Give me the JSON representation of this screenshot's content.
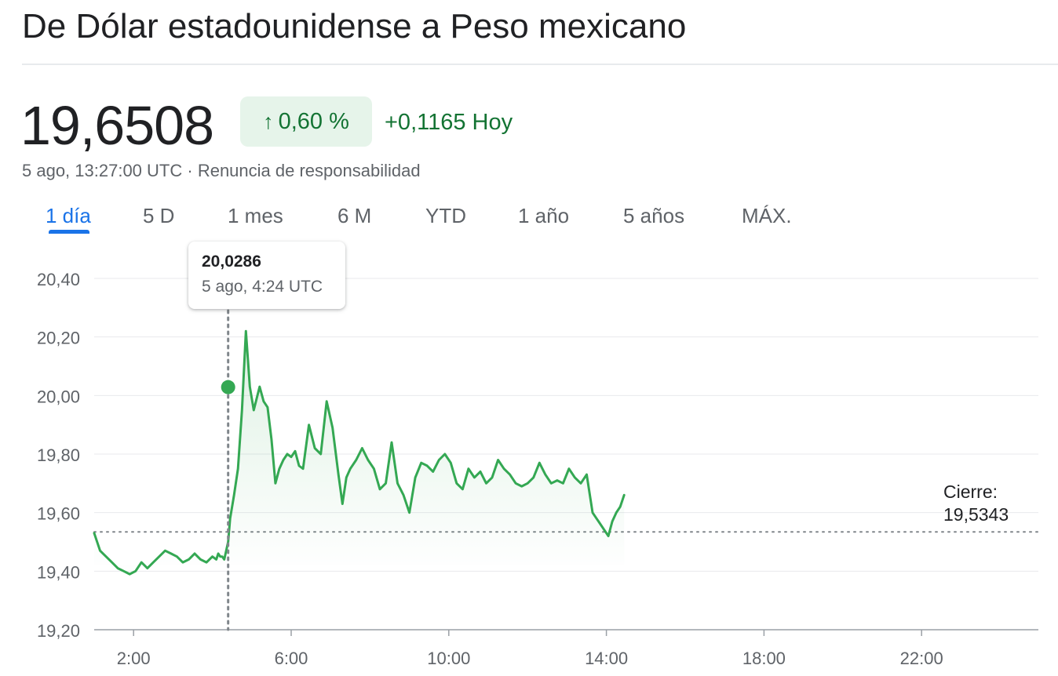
{
  "header": {
    "title": "De Dólar estadounidense a Peso mexicano"
  },
  "quote": {
    "price": "19,6508",
    "change_pct": "0,60 %",
    "change_abs": "+0,1165 Hoy",
    "timestamp": "5 ago, 13:27:00 UTC",
    "separator": "·",
    "disclaimer": "Renuncia de responsabilidad",
    "direction": "up-arrow-icon"
  },
  "tabs": [
    {
      "label": "1 día",
      "active": true
    },
    {
      "label": "5 D",
      "active": false
    },
    {
      "label": "1 mes",
      "active": false
    },
    {
      "label": "6 M",
      "active": false
    },
    {
      "label": "YTD",
      "active": false
    },
    {
      "label": "1 año",
      "active": false
    },
    {
      "label": "5 años",
      "active": false
    },
    {
      "label": "MÁX.",
      "active": false
    }
  ],
  "tooltip": {
    "value": "20,0286",
    "time": "5 ago, 4:24 UTC"
  },
  "previous_close": {
    "label": "Cierre:",
    "value": "19,5343"
  },
  "colors": {
    "line": "#34a853",
    "positive": "#137333",
    "positive_bg": "#e6f4ea",
    "accent": "#1a73e8"
  },
  "chart_data": {
    "type": "line",
    "title": "",
    "xlabel": "",
    "ylabel": "",
    "xlim": [
      1.0,
      24.0
    ],
    "ylim": [
      19.2,
      20.4
    ],
    "yticks": [
      "19,20",
      "19,40",
      "19,60",
      "19,80",
      "20,00",
      "20,20",
      "20,40"
    ],
    "ytick_values": [
      19.2,
      19.4,
      19.6,
      19.8,
      20.0,
      20.2,
      20.4
    ],
    "xticks": [
      "2:00",
      "6:00",
      "10:00",
      "14:00",
      "18:00",
      "22:00"
    ],
    "xtick_values": [
      2,
      6,
      10,
      14,
      18,
      22
    ],
    "previous_close": 19.5343,
    "hover_point": {
      "x": 4.4,
      "y": 20.0286
    },
    "grid": true,
    "series": [
      {
        "x": [
          0.0,
          0.15,
          0.3,
          0.45,
          0.6,
          0.75,
          0.9,
          1.05,
          1.2,
          1.35,
          1.5,
          1.65,
          1.8,
          1.95,
          2.1,
          2.25,
          2.4,
          2.55,
          2.7,
          2.85,
          3.0,
          3.1,
          3.15,
          3.2,
          3.25,
          3.3,
          3.35,
          3.4,
          3.45,
          3.55,
          3.65,
          3.75,
          3.85,
          3.95,
          4.05,
          4.2,
          4.3,
          4.4,
          4.5,
          4.6,
          4.7,
          4.8,
          4.9,
          5.0,
          5.1,
          5.2,
          5.3,
          5.45,
          5.6,
          5.75,
          5.9,
          6.05,
          6.2,
          6.3,
          6.4,
          6.5,
          6.65,
          6.8,
          6.95,
          7.1,
          7.25,
          7.4,
          7.55,
          7.7,
          7.85,
          8.0,
          8.15,
          8.3,
          8.45,
          8.6,
          8.75,
          8.9,
          9.05,
          9.2,
          9.35,
          9.5,
          9.65,
          9.8,
          9.95,
          10.1,
          10.25,
          10.4,
          10.55,
          10.7,
          10.85,
          11.0,
          11.15,
          11.3,
          11.45,
          11.6,
          11.75,
          11.9,
          12.05,
          12.2,
          12.35,
          12.5,
          12.65,
          12.8,
          12.95,
          13.05,
          13.15,
          13.25,
          13.35,
          13.45
        ],
        "values": [
          19.53,
          19.47,
          19.45,
          19.43,
          19.41,
          19.4,
          19.39,
          19.4,
          19.43,
          19.41,
          19.43,
          19.45,
          19.47,
          19.46,
          19.45,
          19.43,
          19.44,
          19.46,
          19.44,
          19.43,
          19.45,
          19.44,
          19.46,
          19.45,
          19.45,
          19.44,
          19.47,
          19.5,
          19.58,
          19.66,
          19.75,
          19.95,
          20.22,
          20.03,
          19.95,
          20.03,
          19.98,
          19.96,
          19.85,
          19.7,
          19.75,
          19.78,
          19.8,
          19.79,
          19.81,
          19.76,
          19.75,
          19.9,
          19.82,
          19.8,
          19.98,
          19.89,
          19.73,
          19.63,
          19.72,
          19.75,
          19.78,
          19.82,
          19.78,
          19.75,
          19.68,
          19.7,
          19.84,
          19.7,
          19.66,
          19.6,
          19.72,
          19.77,
          19.76,
          19.74,
          19.78,
          19.8,
          19.77,
          19.7,
          19.68,
          19.75,
          19.72,
          19.74,
          19.7,
          19.72,
          19.78,
          19.75,
          19.73,
          19.7,
          19.69,
          19.7,
          19.72,
          19.77,
          19.73,
          19.7,
          19.71,
          19.7,
          19.75,
          19.72,
          19.7,
          19.73,
          19.6,
          19.57,
          19.54,
          19.52,
          19.57,
          19.6,
          19.62,
          19.66
        ]
      }
    ]
  }
}
